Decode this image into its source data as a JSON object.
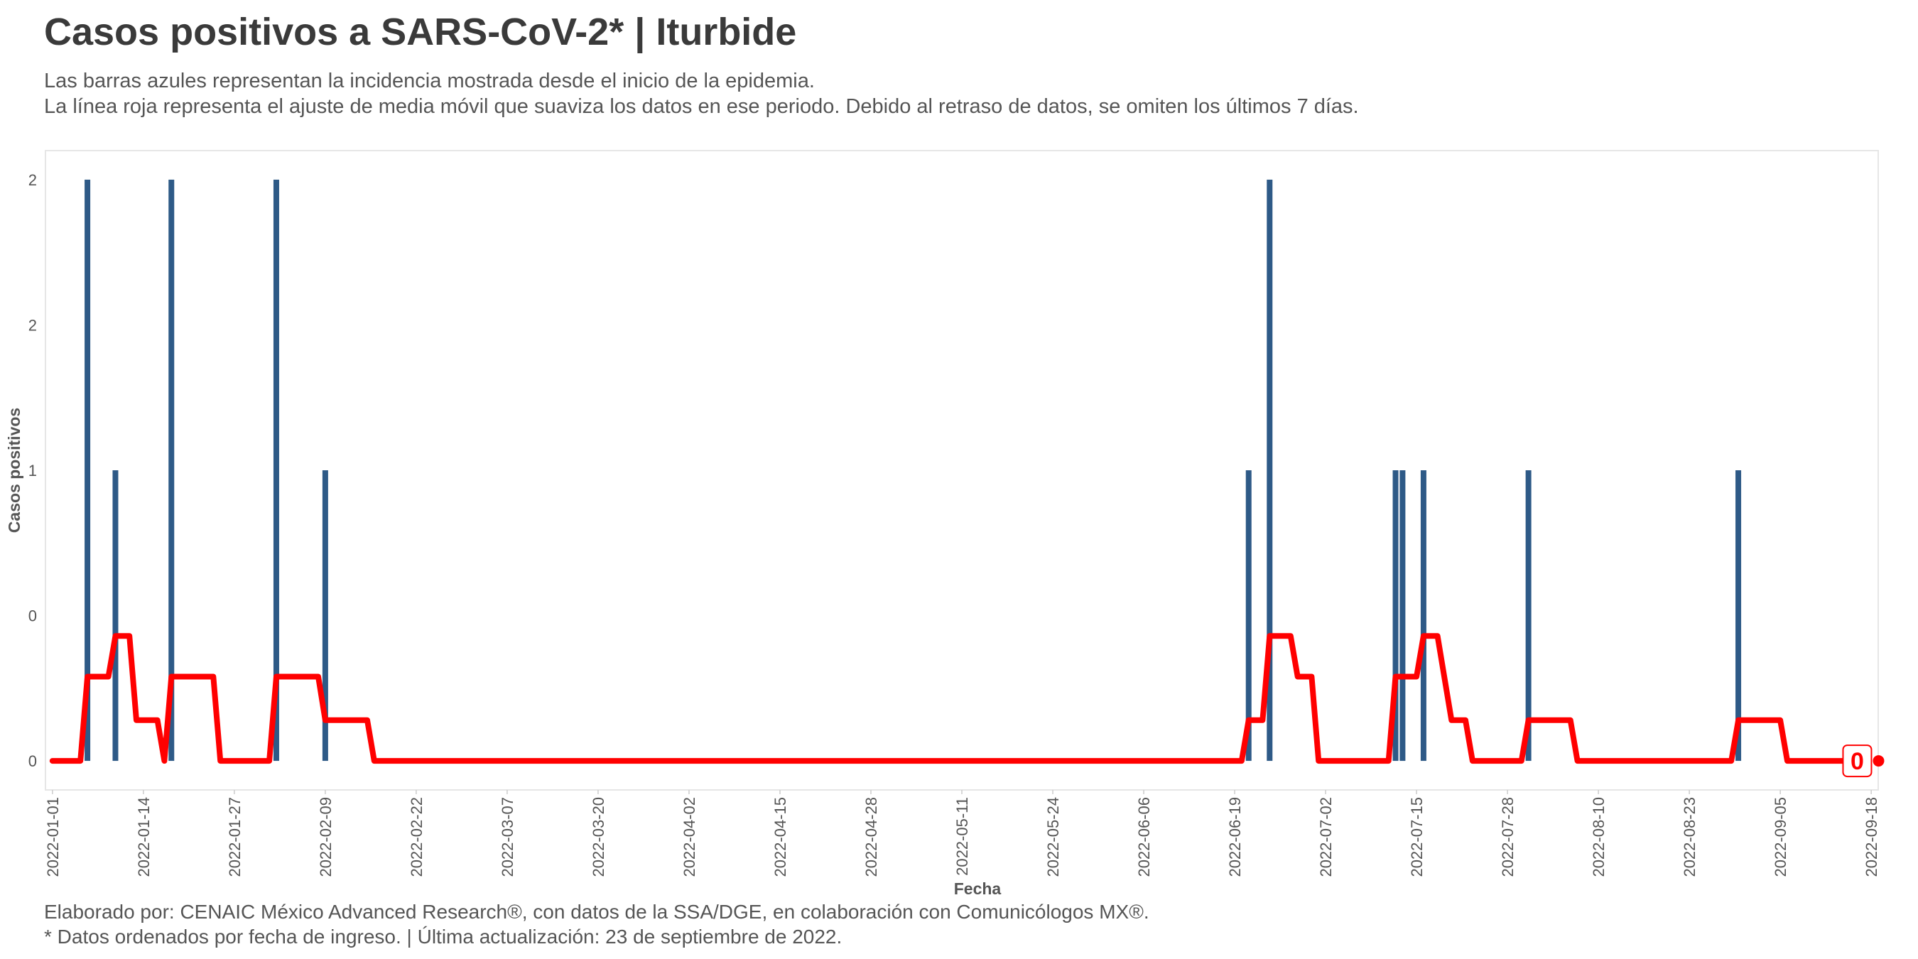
{
  "title": "Casos positivos a SARS-CoV-2* | Iturbide",
  "subtitle_line1": "Las barras azules representan la incidencia mostrada desde el inicio de la epidemia.",
  "subtitle_line2": "La línea roja representa el ajuste de media móvil que suaviza los datos en ese periodo. Debido al retraso de datos, se omiten los últimos 7 días.",
  "caption_line1": "Elaborado por: CENAIC México Advanced Research®, con datos de la SSA/DGE, en colaboración con Comunicólogos MX®.",
  "caption_line2": "* Datos ordenados por fecha de ingreso. | Última actualización: 23 de septiembre de 2022.",
  "colors": {
    "bars": "#2e5a87",
    "line": "#ff0000",
    "panel_border": "#e6e6e6",
    "text": "#3d3d3d"
  },
  "chart_data": {
    "type": "bar",
    "xlabel": "Fecha",
    "ylabel": "Casos positivos",
    "x_ticks": [
      "2022-01-01",
      "2022-01-14",
      "2022-01-27",
      "2022-02-09",
      "2022-02-22",
      "2022-03-07",
      "2022-03-20",
      "2022-04-02",
      "2022-04-15",
      "2022-04-28",
      "2022-05-11",
      "2022-05-24",
      "2022-06-06",
      "2022-06-19",
      "2022-07-02",
      "2022-07-15",
      "2022-07-28",
      "2022-08-10",
      "2022-08-23",
      "2022-09-05",
      "2022-09-18"
    ],
    "y_ticks": [
      "0",
      "0",
      "1",
      "2",
      "2"
    ],
    "y_tick_values": [
      0,
      0.5,
      1,
      1.5,
      2
    ],
    "xlim": [
      "2021-12-31",
      "2022-09-19"
    ],
    "ylim": [
      -0.1,
      2.1
    ],
    "bars": [
      {
        "date": "2022-01-06",
        "value": 2
      },
      {
        "date": "2022-01-10",
        "value": 1
      },
      {
        "date": "2022-01-18",
        "value": 2
      },
      {
        "date": "2022-02-02",
        "value": 2
      },
      {
        "date": "2022-02-09",
        "value": 1
      },
      {
        "date": "2022-06-21",
        "value": 1
      },
      {
        "date": "2022-06-24",
        "value": 2
      },
      {
        "date": "2022-07-12",
        "value": 1
      },
      {
        "date": "2022-07-13",
        "value": 1
      },
      {
        "date": "2022-07-16",
        "value": 1
      },
      {
        "date": "2022-07-31",
        "value": 1
      },
      {
        "date": "2022-08-30",
        "value": 1
      }
    ],
    "moving_average": [
      {
        "date": "2022-01-01",
        "value": 0
      },
      {
        "date": "2022-01-05",
        "value": 0
      },
      {
        "date": "2022-01-06",
        "value": 0.29
      },
      {
        "date": "2022-01-09",
        "value": 0.29
      },
      {
        "date": "2022-01-10",
        "value": 0.43
      },
      {
        "date": "2022-01-12",
        "value": 0.43
      },
      {
        "date": "2022-01-13",
        "value": 0.14
      },
      {
        "date": "2022-01-16",
        "value": 0.14
      },
      {
        "date": "2022-01-17",
        "value": 0
      },
      {
        "date": "2022-01-18",
        "value": 0.29
      },
      {
        "date": "2022-01-24",
        "value": 0.29
      },
      {
        "date": "2022-01-25",
        "value": 0
      },
      {
        "date": "2022-02-01",
        "value": 0
      },
      {
        "date": "2022-02-02",
        "value": 0.29
      },
      {
        "date": "2022-02-08",
        "value": 0.29
      },
      {
        "date": "2022-02-09",
        "value": 0.14
      },
      {
        "date": "2022-02-15",
        "value": 0.14
      },
      {
        "date": "2022-02-16",
        "value": 0
      },
      {
        "date": "2022-06-20",
        "value": 0
      },
      {
        "date": "2022-06-21",
        "value": 0.14
      },
      {
        "date": "2022-06-23",
        "value": 0.14
      },
      {
        "date": "2022-06-24",
        "value": 0.43
      },
      {
        "date": "2022-06-27",
        "value": 0.43
      },
      {
        "date": "2022-06-28",
        "value": 0.29
      },
      {
        "date": "2022-06-30",
        "value": 0.29
      },
      {
        "date": "2022-07-01",
        "value": 0
      },
      {
        "date": "2022-07-11",
        "value": 0
      },
      {
        "date": "2022-07-12",
        "value": 0.29
      },
      {
        "date": "2022-07-15",
        "value": 0.29
      },
      {
        "date": "2022-07-16",
        "value": 0.43
      },
      {
        "date": "2022-07-18",
        "value": 0.43
      },
      {
        "date": "2022-07-20",
        "value": 0.14
      },
      {
        "date": "2022-07-22",
        "value": 0.14
      },
      {
        "date": "2022-07-23",
        "value": 0
      },
      {
        "date": "2022-07-30",
        "value": 0
      },
      {
        "date": "2022-07-31",
        "value": 0.14
      },
      {
        "date": "2022-08-06",
        "value": 0.14
      },
      {
        "date": "2022-08-07",
        "value": 0
      },
      {
        "date": "2022-08-29",
        "value": 0
      },
      {
        "date": "2022-08-30",
        "value": 0.14
      },
      {
        "date": "2022-09-05",
        "value": 0.14
      },
      {
        "date": "2022-09-06",
        "value": 0
      },
      {
        "date": "2022-09-16",
        "value": 0
      }
    ],
    "end_label": "0",
    "grid": false
  }
}
